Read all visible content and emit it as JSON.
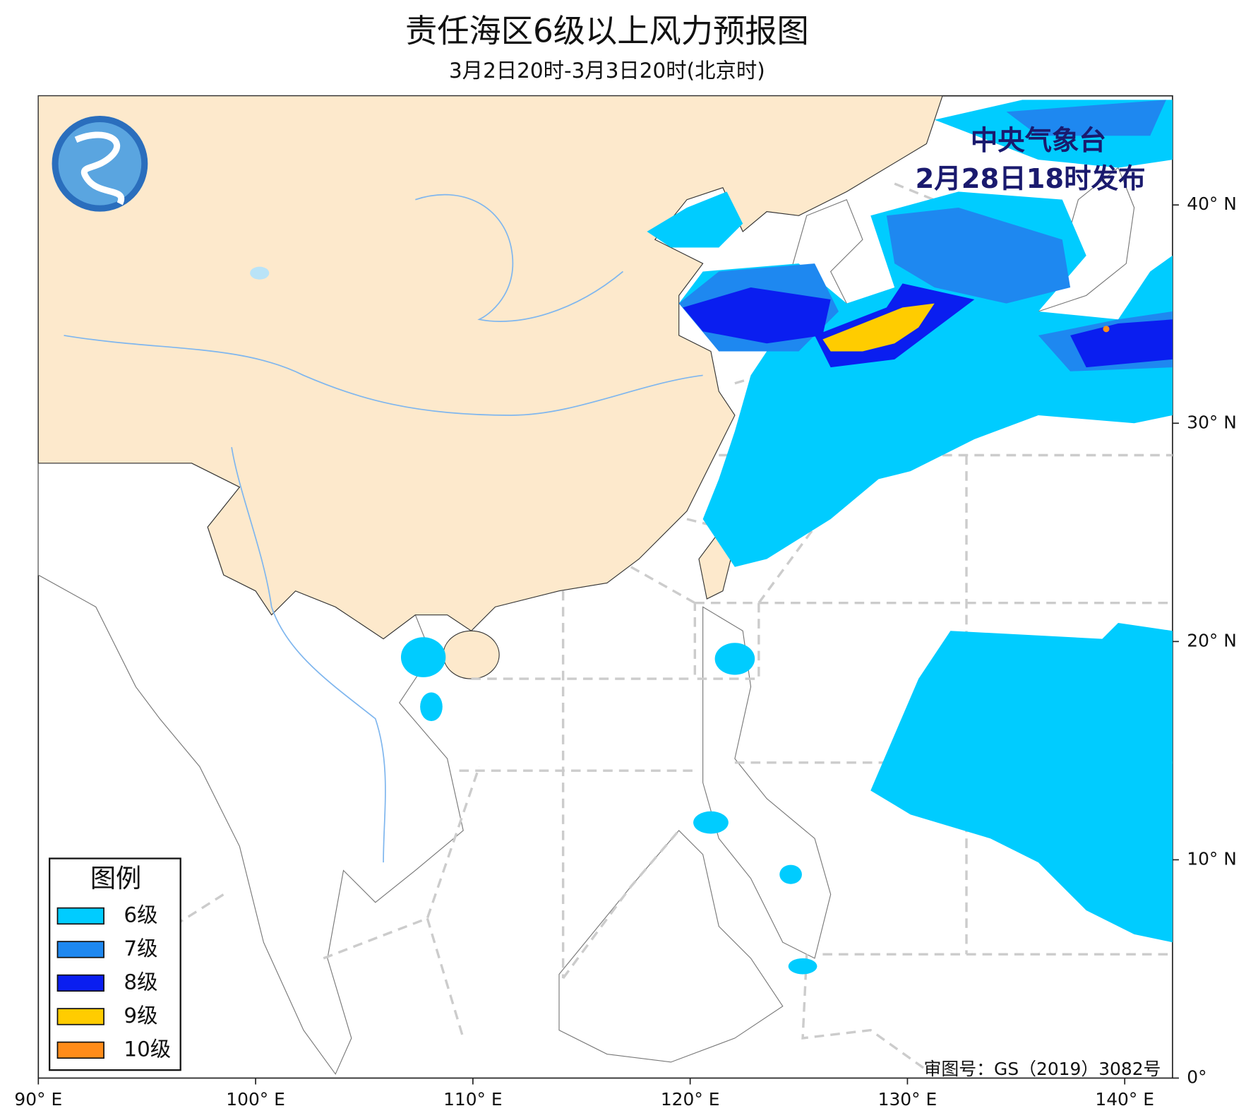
{
  "map": {
    "title": "责任海区6级以上风力预报图",
    "subtitle": "3月2日20时-3月3日20时(北京时)",
    "issuer": [
      "中央气象台",
      "2月28日18时发布"
    ],
    "approval": "审图号：GS（2019）3082号",
    "xlim": [
      90,
      142.2
    ],
    "ylim": [
      0,
      45
    ],
    "xticks": [
      {
        "value": 90,
        "label": "90° E"
      },
      {
        "value": 100,
        "label": "100° E"
      },
      {
        "value": 110,
        "label": "110° E"
      },
      {
        "value": 120,
        "label": "120° E"
      },
      {
        "value": 130,
        "label": "130° E"
      },
      {
        "value": 140,
        "label": "140° E"
      }
    ],
    "yticks": [
      {
        "value": 0,
        "label": "0°"
      },
      {
        "value": 10,
        "label": "10° N"
      },
      {
        "value": 20,
        "label": "20° N"
      },
      {
        "value": 30,
        "label": "30° N"
      },
      {
        "value": 40,
        "label": "40° N"
      }
    ],
    "legend": {
      "title": "图例",
      "items": [
        {
          "label": "6级",
          "color": "#00ccff"
        },
        {
          "label": "7级",
          "color": "#1e88f0"
        },
        {
          "label": "8级",
          "color": "#0a1ef0"
        },
        {
          "label": "9级",
          "color": "#ffcc00"
        },
        {
          "label": "10级",
          "color": "#ff8c1a"
        }
      ]
    }
  }
}
